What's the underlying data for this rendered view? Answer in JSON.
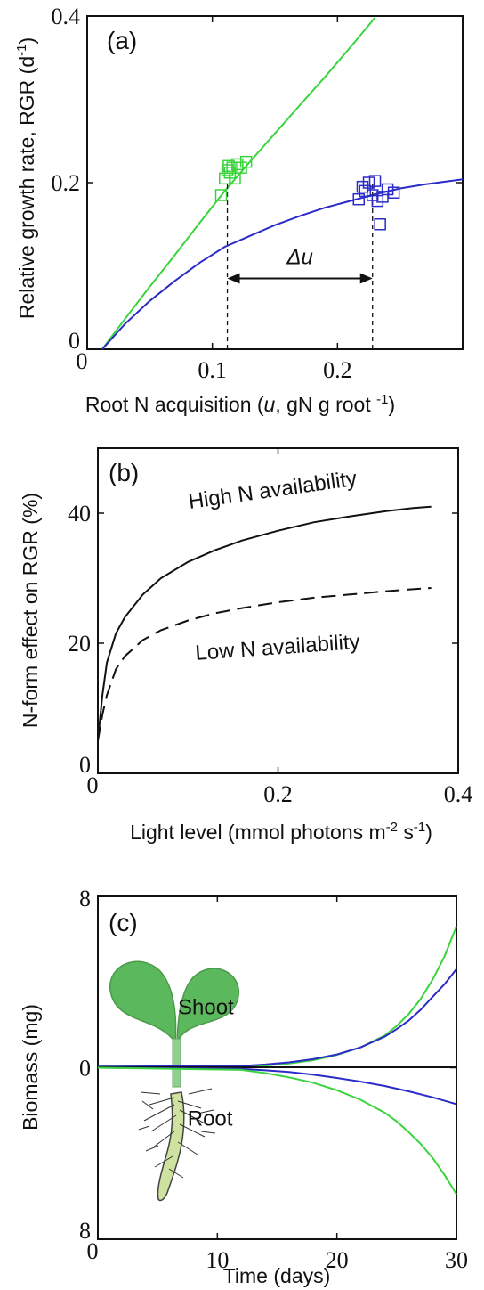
{
  "chart_data": [
    {
      "type": "line",
      "panel_label": "(a)",
      "xlabel": {
        "pre": "Root N acquisition (",
        "italic": "u",
        "post": ", gN g root ",
        "sup": "-1",
        "close": ")"
      },
      "ylabel": {
        "pre": "Relative growth rate, RGR (d",
        "sup": "-1",
        "close": ")"
      },
      "xlim": [
        0,
        0.3
      ],
      "ylim": [
        0,
        0.4
      ],
      "xticks": [
        0.1,
        0.2
      ],
      "xtick_labels": [
        "0.1",
        "0.2"
      ],
      "yticks": [
        0,
        0.2,
        0.4
      ],
      "ytick_labels": [
        "0",
        "0.2",
        "0.4"
      ],
      "x_origin_label": "0",
      "colors": {
        "green": "#39d43c",
        "blue": "#2b2bc8"
      },
      "series": [
        {
          "color": "green",
          "x": [
            0.012,
            0.03,
            0.05,
            0.07,
            0.09,
            0.11,
            0.13,
            0.15,
            0.17,
            0.19,
            0.21,
            0.23
          ],
          "y": [
            0,
            0.036,
            0.075,
            0.113,
            0.152,
            0.19,
            0.225,
            0.259,
            0.293,
            0.327,
            0.362,
            0.398
          ]
        },
        {
          "color": "blue",
          "x": [
            0.012,
            0.03,
            0.05,
            0.07,
            0.09,
            0.11,
            0.13,
            0.15,
            0.17,
            0.19,
            0.21,
            0.23,
            0.25,
            0.27,
            0.29,
            0.3
          ],
          "y": [
            0,
            0.03,
            0.058,
            0.082,
            0.104,
            0.123,
            0.136,
            0.149,
            0.16,
            0.17,
            0.178,
            0.186,
            0.193,
            0.198,
            0.202,
            0.204
          ]
        }
      ],
      "scatter": [
        {
          "color": "green",
          "x": [
            0.107,
            0.11,
            0.112,
            0.113,
            0.114,
            0.116,
            0.118,
            0.12,
            0.123,
            0.127
          ],
          "y": [
            0.185,
            0.205,
            0.215,
            0.22,
            0.212,
            0.218,
            0.205,
            0.222,
            0.218,
            0.225
          ]
        },
        {
          "color": "blue",
          "x": [
            0.217,
            0.22,
            0.222,
            0.225,
            0.228,
            0.23,
            0.232,
            0.234,
            0.236,
            0.24,
            0.245
          ],
          "y": [
            0.18,
            0.195,
            0.19,
            0.2,
            0.185,
            0.202,
            0.178,
            0.15,
            0.183,
            0.192,
            0.188
          ]
        }
      ],
      "vlines": [
        0.112,
        0.228
      ],
      "arrow": {
        "x_from": 0.112,
        "x_to": 0.228,
        "y": 0.085,
        "label": "Δu"
      }
    },
    {
      "type": "line",
      "panel_label": "(b)",
      "xlabel": {
        "pre": "Light level (mmol photons m",
        "sup1": "-2",
        "mid": " s",
        "sup2": "-1",
        "close": ")"
      },
      "ylabel": "N-form effect on RGR (%)",
      "xlim": [
        0,
        0.4
      ],
      "ylim": [
        0,
        50
      ],
      "xticks": [
        0.2,
        0.4
      ],
      "xtick_labels": [
        "0.2",
        "0.4"
      ],
      "yticks": [
        0,
        20,
        40
      ],
      "ytick_labels": [
        "0",
        "20",
        "40"
      ],
      "x_origin_label": "0",
      "series": [
        {
          "name": "High N availability",
          "style": "solid",
          "x": [
            0,
            0.005,
            0.01,
            0.02,
            0.03,
            0.05,
            0.07,
            0.1,
            0.13,
            0.16,
            0.2,
            0.24,
            0.28,
            0.32,
            0.35,
            0.37
          ],
          "y": [
            5,
            12,
            17,
            21.5,
            24,
            27.5,
            30,
            32.5,
            34.3,
            35.8,
            37.3,
            38.6,
            39.5,
            40.3,
            40.8,
            41
          ]
        },
        {
          "name": "Low N availability",
          "style": "dashed",
          "x": [
            0,
            0.005,
            0.01,
            0.02,
            0.03,
            0.05,
            0.07,
            0.1,
            0.13,
            0.16,
            0.2,
            0.24,
            0.28,
            0.32,
            0.35,
            0.37
          ],
          "y": [
            5,
            9,
            12,
            16,
            18,
            20.5,
            22,
            23.5,
            24.6,
            25.4,
            26.3,
            27,
            27.5,
            28,
            28.3,
            28.5
          ]
        }
      ],
      "labels": [
        {
          "text": "High N availability",
          "x": 0.195,
          "y": 42.5,
          "angle": -8
        },
        {
          "text": "Low N availability",
          "x": 0.2,
          "y": 18.3,
          "angle": -4
        }
      ]
    },
    {
      "type": "line",
      "panel_label": "(c)",
      "xlabel": "Time (days)",
      "ylabel": "Biomass (mg)",
      "xlim": [
        0,
        30
      ],
      "ylim": [
        -8,
        8
      ],
      "xticks": [
        10,
        20,
        30
      ],
      "xtick_labels": [
        "10",
        "20",
        "30"
      ],
      "yticks": [
        8,
        0,
        -8
      ],
      "ytick_labels": [
        "8",
        "0",
        "8"
      ],
      "x_origin_label": "0",
      "series": [
        {
          "color": "green",
          "x": [
            0,
            14,
            16,
            18,
            20,
            22,
            24,
            25,
            26,
            27,
            28,
            29,
            30
          ],
          "y": [
            0.05,
            0.1,
            0.2,
            0.35,
            0.6,
            0.95,
            1.5,
            1.95,
            2.5,
            3.2,
            4.1,
            5.2,
            6.6
          ]
        },
        {
          "color": "blue",
          "x": [
            0,
            12,
            14,
            16,
            18,
            20,
            22,
            24,
            25,
            26,
            27,
            28,
            29,
            30
          ],
          "y": [
            0.05,
            0.08,
            0.15,
            0.25,
            0.4,
            0.62,
            0.95,
            1.45,
            1.8,
            2.2,
            2.7,
            3.3,
            3.9,
            4.6
          ]
        },
        {
          "color": "black",
          "x": [
            0,
            30
          ],
          "y": [
            0.02,
            0.02
          ]
        },
        {
          "color": "blue",
          "x": [
            0,
            12,
            14,
            16,
            18,
            20,
            22,
            24,
            26,
            28,
            30
          ],
          "y": [
            0,
            -0.05,
            -0.12,
            -0.2,
            -0.32,
            -0.48,
            -0.65,
            -0.85,
            -1.1,
            -1.38,
            -1.7
          ]
        },
        {
          "color": "green",
          "x": [
            0,
            12,
            14,
            16,
            18,
            20,
            22,
            24,
            25,
            26,
            27,
            28,
            29,
            30
          ],
          "y": [
            0,
            -0.1,
            -0.25,
            -0.45,
            -0.7,
            -1.05,
            -1.5,
            -2.1,
            -2.5,
            -3.0,
            -3.55,
            -4.2,
            -5.0,
            -5.9
          ]
        }
      ],
      "labels": [
        {
          "text": "Shoot",
          "x": 6.7,
          "y": 2.5
        },
        {
          "text": "Root",
          "x": 7.5,
          "y": -2.7
        }
      ],
      "colors": {
        "leaf": "#5cb85c",
        "leaf_edge": "#4a9a4a",
        "stem": "#8fd08f",
        "root": "#cfe3a1",
        "root_edge": "#333333"
      }
    }
  ]
}
